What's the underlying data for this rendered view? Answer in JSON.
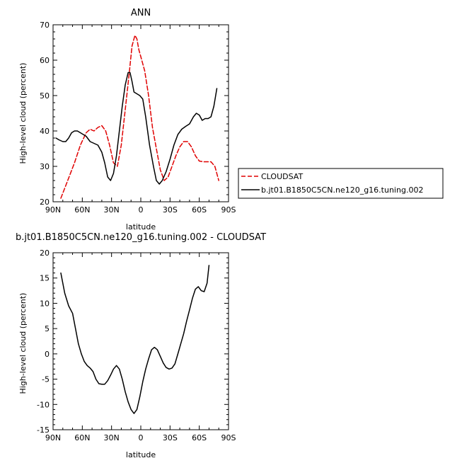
{
  "chart_data": [
    {
      "type": "line",
      "title": "ANN",
      "xlabel": "latitude",
      "ylabel": "High-level cloud (percent)",
      "xlim": [
        90,
        -90
      ],
      "ylim": [
        20,
        70
      ],
      "x_ticks": [
        90,
        60,
        30,
        0,
        -30,
        -60,
        -90
      ],
      "x_tick_labels": [
        "90N",
        "60N",
        "30N",
        "0",
        "30S",
        "60S",
        "90S"
      ],
      "y_ticks": [
        20,
        30,
        40,
        50,
        60,
        70
      ],
      "y_tick_labels": [
        "20",
        "30",
        "40",
        "50",
        "60",
        "70"
      ],
      "legend_position": "right",
      "series": [
        {
          "name": "CLOUDSAT",
          "color": "#e00000",
          "dash": "dashed",
          "points": [
            [
              82,
              21
            ],
            [
              75,
              26
            ],
            [
              68,
              31
            ],
            [
              62,
              36
            ],
            [
              56,
              39.5
            ],
            [
              52,
              40.5
            ],
            [
              48,
              40
            ],
            [
              44,
              41
            ],
            [
              40,
              41.5
            ],
            [
              36,
              40
            ],
            [
              32,
              36
            ],
            [
              28,
              31
            ],
            [
              24,
              30
            ],
            [
              20,
              36
            ],
            [
              16,
              46
            ],
            [
              12,
              56
            ],
            [
              9,
              64
            ],
            [
              6,
              67
            ],
            [
              4,
              66
            ],
            [
              2,
              63
            ],
            [
              0,
              61
            ],
            [
              -4,
              57
            ],
            [
              -8,
              50
            ],
            [
              -12,
              41
            ],
            [
              -16,
              35
            ],
            [
              -20,
              29
            ],
            [
              -24,
              26
            ],
            [
              -28,
              27
            ],
            [
              -32,
              30
            ],
            [
              -36,
              33
            ],
            [
              -40,
              35.5
            ],
            [
              -44,
              37
            ],
            [
              -48,
              37
            ],
            [
              -52,
              35.5
            ],
            [
              -56,
              33
            ],
            [
              -60,
              31.5
            ],
            [
              -64,
              31.3
            ],
            [
              -68,
              31.3
            ],
            [
              -72,
              31.3
            ],
            [
              -76,
              30
            ],
            [
              -80,
              26
            ]
          ]
        },
        {
          "name": "b.jt01.B1850C5CN.ne120_g16.tuning.002",
          "color": "#000000",
          "dash": "solid",
          "points": [
            [
              87,
              38
            ],
            [
              84,
              37.5
            ],
            [
              80,
              37
            ],
            [
              77,
              37
            ],
            [
              74,
              38
            ],
            [
              71,
              39.5
            ],
            [
              68,
              40
            ],
            [
              65,
              40
            ],
            [
              62,
              39.5
            ],
            [
              59,
              39
            ],
            [
              56,
              38.5
            ],
            [
              52,
              37
            ],
            [
              48,
              36.5
            ],
            [
              44,
              36
            ],
            [
              40,
              34
            ],
            [
              37,
              31
            ],
            [
              34,
              27
            ],
            [
              31,
              26
            ],
            [
              28,
              28
            ],
            [
              25,
              33
            ],
            [
              22,
              40
            ],
            [
              19,
              47
            ],
            [
              16,
              53
            ],
            [
              13,
              56.5
            ],
            [
              11,
              56.5
            ],
            [
              9,
              54
            ],
            [
              7,
              51
            ],
            [
              4,
              50.5
            ],
            [
              1,
              50
            ],
            [
              -2,
              49
            ],
            [
              -5,
              44
            ],
            [
              -9,
              36
            ],
            [
              -13,
              30
            ],
            [
              -16,
              26
            ],
            [
              -19,
              25
            ],
            [
              -22,
              26
            ],
            [
              -26,
              28.5
            ],
            [
              -30,
              32
            ],
            [
              -34,
              36
            ],
            [
              -38,
              39
            ],
            [
              -42,
              40.5
            ],
            [
              -46,
              41.3
            ],
            [
              -50,
              42
            ],
            [
              -54,
              44
            ],
            [
              -57,
              45
            ],
            [
              -60,
              44.5
            ],
            [
              -63,
              43
            ],
            [
              -66,
              43.5
            ],
            [
              -69,
              43.5
            ],
            [
              -72,
              44
            ],
            [
              -75,
              47
            ],
            [
              -78,
              52
            ]
          ]
        }
      ]
    },
    {
      "type": "line",
      "title": "b.jt01.B1850C5CN.ne120_g16.tuning.002 - CLOUDSAT",
      "xlabel": "latitude",
      "ylabel": "High-level cloud (percent)",
      "xlim": [
        90,
        -90
      ],
      "ylim": [
        -15,
        20
      ],
      "x_ticks": [
        90,
        60,
        30,
        0,
        -30,
        -60,
        -90
      ],
      "x_tick_labels": [
        "90N",
        "60N",
        "30N",
        "0",
        "30S",
        "60S",
        "90S"
      ],
      "y_ticks": [
        -15,
        -10,
        -5,
        0,
        5,
        10,
        15,
        20
      ],
      "y_tick_labels": [
        "-15",
        "-10",
        "-5",
        "0",
        "5",
        "10",
        "15",
        "20"
      ],
      "series": [
        {
          "color": "#000000",
          "dash": "solid",
          "points": [
            [
              82,
              16
            ],
            [
              78,
              12
            ],
            [
              74,
              9.5
            ],
            [
              70,
              8
            ],
            [
              67,
              5
            ],
            [
              64,
              2
            ],
            [
              61,
              0
            ],
            [
              58,
              -1.5
            ],
            [
              55,
              -2.3
            ],
            [
              52,
              -2.8
            ],
            [
              49,
              -3.5
            ],
            [
              46,
              -5
            ],
            [
              43,
              -5.9
            ],
            [
              40,
              -6
            ],
            [
              37,
              -6
            ],
            [
              34,
              -5.3
            ],
            [
              31,
              -4.2
            ],
            [
              28,
              -3
            ],
            [
              25,
              -2.3
            ],
            [
              22,
              -3
            ],
            [
              19,
              -5
            ],
            [
              16,
              -7.5
            ],
            [
              13,
              -9.5
            ],
            [
              10,
              -11
            ],
            [
              7,
              -11.8
            ],
            [
              4,
              -11
            ],
            [
              1,
              -8.5
            ],
            [
              -2,
              -5.5
            ],
            [
              -5,
              -3
            ],
            [
              -8,
              -1
            ],
            [
              -11,
              0.8
            ],
            [
              -14,
              1.3
            ],
            [
              -17,
              0.8
            ],
            [
              -20,
              -0.5
            ],
            [
              -23,
              -1.8
            ],
            [
              -26,
              -2.7
            ],
            [
              -29,
              -3
            ],
            [
              -32,
              -2.8
            ],
            [
              -35,
              -2
            ],
            [
              -38,
              0
            ],
            [
              -41,
              2
            ],
            [
              -44,
              4
            ],
            [
              -47,
              6.5
            ],
            [
              -50,
              8.7
            ],
            [
              -53,
              11
            ],
            [
              -56,
              12.8
            ],
            [
              -59,
              13.3
            ],
            [
              -62,
              12.5
            ],
            [
              -65,
              12.3
            ],
            [
              -68,
              14
            ],
            [
              -70,
              17.5
            ]
          ]
        }
      ]
    }
  ]
}
